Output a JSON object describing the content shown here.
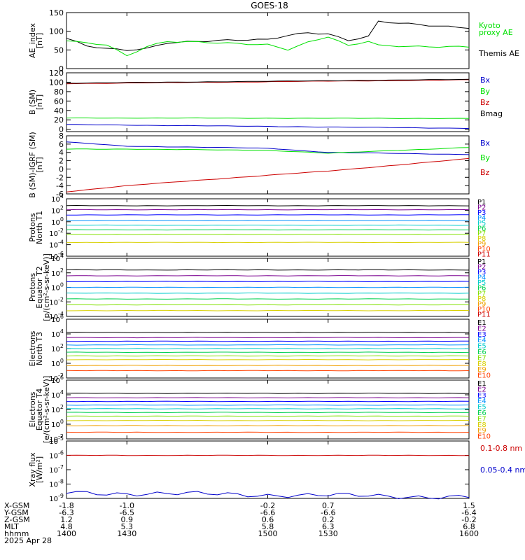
{
  "title": "GOES-18",
  "colors": {
    "black": "#000000",
    "green": "#00e000",
    "blue": "#0000cc",
    "red": "#cc0000",
    "P": [
      "#000000",
      "#7a0090",
      "#0000ff",
      "#0090ff",
      "#00cccc",
      "#00d050",
      "#80e000",
      "#d8d000",
      "#f0a000",
      "#ff4000",
      "#cc0000"
    ],
    "E": [
      "#000000",
      "#7a0090",
      "#0000ff",
      "#0090ff",
      "#00cccc",
      "#00d050",
      "#80e000",
      "#d8d000",
      "#f0a000",
      "#ff4000",
      "#aa0000"
    ]
  },
  "chart_data": [
    {
      "type": "line",
      "ylabel": "AE_index [nT]",
      "ylim": [
        0,
        150
      ],
      "yticks": [
        "0",
        "50",
        "100",
        "150"
      ],
      "x": [
        1400,
        1410,
        1420,
        1430,
        1440,
        1450,
        1500,
        1510,
        1520,
        1530,
        1540,
        1550,
        1555,
        1600
      ],
      "series": [
        {
          "name": "Themis AE",
          "color": "#000000",
          "values": [
            80,
            60,
            53,
            50,
            55,
            70,
            78,
            90,
            97,
            93,
            75,
            85,
            125,
            110
          ]
        },
        {
          "name": "Kyoto proxy AE",
          "color": "#00e000",
          "values": [
            75,
            68,
            65,
            35,
            60,
            72,
            65,
            52,
            70,
            85,
            60,
            73,
            62,
            58
          ]
        }
      ],
      "legend": [
        {
          "text": "Kyoto",
          "color": "#00e000"
        },
        {
          "text": "proxy AE",
          "color": "#00e000"
        },
        {
          "text": "Themis AE",
          "color": "#000000"
        }
      ]
    },
    {
      "type": "line",
      "ylabel": "B (SM) [nT]",
      "ylim": [
        -5,
        120
      ],
      "yticks": [
        "0",
        "20",
        "40",
        "60",
        "80",
        "100",
        "120"
      ],
      "x": [
        1400,
        1600
      ],
      "series": [
        {
          "name": "Bx",
          "color": "#0000cc",
          "values": [
            10,
            2
          ]
        },
        {
          "name": "By",
          "color": "#00e000",
          "values": [
            24,
            23
          ]
        },
        {
          "name": "Bz",
          "color": "#cc0000",
          "values": [
            97,
            105
          ]
        },
        {
          "name": "Bmag",
          "color": "#000000",
          "values": [
            98,
            106
          ]
        }
      ]
    },
    {
      "type": "line",
      "ylabel": "B (SM)-IGRF (SM) [nT]",
      "ylim": [
        -6,
        8
      ],
      "yticks": [
        "-6",
        "-4",
        "-2",
        "0",
        "2",
        "4",
        "6",
        "8"
      ],
      "x": [
        1400,
        1430,
        1500,
        1530,
        1600
      ],
      "series": [
        {
          "name": "Bx",
          "color": "#0000cc",
          "values": [
            6.5,
            5.5,
            5,
            4,
            3.5
          ]
        },
        {
          "name": "By",
          "color": "#00e000",
          "values": [
            4.8,
            4.8,
            4.5,
            3.8,
            5.2
          ]
        },
        {
          "name": "Bz",
          "color": "#cc0000",
          "values": [
            -5.5,
            -4,
            -1.5,
            -0.5,
            2.5
          ]
        }
      ]
    },
    {
      "type": "line",
      "ylabel": "Protons North T1",
      "ylim": [
        -6,
        4
      ],
      "yticks": [
        "10-6",
        "10-4",
        "10-2",
        "100",
        "102",
        "104"
      ],
      "x": [
        1400,
        1600
      ],
      "series": [
        {
          "name": "P1",
          "values": [
            2.8,
            2.8
          ]
        },
        {
          "name": "P2",
          "values": [
            2.1,
            2.1
          ]
        },
        {
          "name": "P3",
          "values": [
            1.2,
            1.2
          ]
        },
        {
          "name": "P4",
          "values": [
            0.2,
            0.2
          ]
        },
        {
          "name": "P5",
          "values": [
            -0.6,
            -0.6
          ]
        },
        {
          "name": "P6",
          "values": [
            -1.4,
            -1.4
          ]
        },
        {
          "name": "P7",
          "values": [
            -2.2,
            -2.2
          ]
        },
        {
          "name": "P8",
          "values": [
            -3.6,
            -3.6
          ]
        }
      ],
      "labels": [
        "P1",
        "P2",
        "P3",
        "P4",
        "P5",
        "P6",
        "P7",
        "P8",
        "P9",
        "P10",
        "P11"
      ]
    },
    {
      "type": "line",
      "ylabel": "Protons Equator T2 [p/(cm²-s-sr-keV)]",
      "ylim": [
        -4,
        4
      ],
      "yticks": [
        "10-4",
        "10-2",
        "100",
        "102",
        "104"
      ],
      "x": [
        1400,
        1600
      ],
      "series": [
        {
          "name": "P1",
          "values": [
            2.4,
            2.4
          ]
        },
        {
          "name": "P2",
          "values": [
            1.6,
            1.6
          ]
        },
        {
          "name": "P3",
          "values": [
            0.8,
            0.8
          ]
        },
        {
          "name": "P4",
          "values": [
            0.0,
            0.0
          ]
        },
        {
          "name": "P5",
          "values": [
            -0.8,
            -0.8
          ]
        },
        {
          "name": "P6",
          "values": [
            -1.6,
            -1.6
          ]
        },
        {
          "name": "P7",
          "values": [
            -2.4,
            -2.4
          ]
        },
        {
          "name": "P8",
          "values": [
            -3.2,
            -3.2
          ]
        }
      ],
      "labels": [
        "P1",
        "P2",
        "P3",
        "P4",
        "P5",
        "P6",
        "P7",
        "P8",
        "P9",
        "P10",
        "P11"
      ]
    },
    {
      "type": "line",
      "ylabel": "Electrons North T3",
      "ylim": [
        -2,
        6
      ],
      "yticks": [
        "10-2",
        "100",
        "102",
        "104",
        "106"
      ],
      "x": [
        1400,
        1600
      ],
      "series": [
        {
          "name": "E1",
          "values": [
            4.2,
            4.2
          ]
        },
        {
          "name": "E2",
          "values": [
            3.5,
            3.5
          ]
        },
        {
          "name": "E3",
          "values": [
            3.0,
            3.0
          ]
        },
        {
          "name": "E4",
          "values": [
            2.5,
            2.5
          ]
        },
        {
          "name": "E5",
          "values": [
            2.0,
            2.0
          ]
        },
        {
          "name": "E6",
          "values": [
            1.5,
            1.5
          ]
        },
        {
          "name": "E7",
          "values": [
            1.0,
            1.0
          ]
        },
        {
          "name": "E8",
          "values": [
            0.5,
            0.5
          ]
        },
        {
          "name": "E9",
          "values": [
            -0.3,
            -0.3
          ]
        },
        {
          "name": "E10",
          "values": [
            -1.0,
            -1.0
          ]
        }
      ],
      "labels": [
        "E1",
        "E2",
        "E3",
        "E4",
        "E5",
        "E6",
        "E7",
        "E8",
        "E9",
        "E10"
      ]
    },
    {
      "type": "line",
      "ylabel": "Electrons Equator T4 [e/(cm²-s-sr-keV)]",
      "ylim": [
        -2,
        6
      ],
      "yticks": [
        "10-2",
        "100",
        "102",
        "104",
        "106"
      ],
      "x": [
        1400,
        1600
      ],
      "series": [
        {
          "name": "E1",
          "values": [
            4.2,
            4.2
          ]
        },
        {
          "name": "E2",
          "values": [
            3.6,
            3.6
          ]
        },
        {
          "name": "E3",
          "values": [
            3.1,
            3.1
          ]
        },
        {
          "name": "E4",
          "values": [
            2.6,
            2.6
          ]
        },
        {
          "name": "E5",
          "values": [
            2.1,
            2.1
          ]
        },
        {
          "name": "E6",
          "values": [
            1.6,
            1.6
          ]
        },
        {
          "name": "E7",
          "values": [
            1.1,
            1.1
          ]
        },
        {
          "name": "E8",
          "values": [
            0.5,
            0.5
          ]
        },
        {
          "name": "E9",
          "values": [
            -0.2,
            -0.2
          ]
        },
        {
          "name": "E10",
          "values": [
            -1.1,
            -1.1
          ]
        }
      ],
      "labels": [
        "E1",
        "E2",
        "E3",
        "E4",
        "E5",
        "E6",
        "E7",
        "E8",
        "E9",
        "E10"
      ]
    },
    {
      "type": "line",
      "ylabel": "Xray flux [W/m²]",
      "ylim": [
        -9,
        -5
      ],
      "yticks": [
        "10-9",
        "10-8",
        "10-7",
        "10-6",
        "10-5"
      ],
      "x": [
        1400,
        1600
      ],
      "series": [
        {
          "name": "0.1-0.8 nm",
          "color": "#cc0000",
          "values": [
            -6.0,
            -6.0
          ]
        },
        {
          "name": "0.05-0.4 nm",
          "color": "#0000cc",
          "values": [
            -8.6,
            -8.9
          ]
        }
      ]
    }
  ],
  "x_axis": {
    "ticks": [
      {
        "xgsm": "-1.8",
        "ygsm": "-6.3",
        "zgsm": "1.2",
        "mlt": "4.8",
        "hhmm": "1400"
      },
      {
        "xgsm": "-1.0",
        "ygsm": "-6.5",
        "zgsm": "0.9",
        "mlt": "5.3",
        "hhmm": "1430"
      },
      {
        "xgsm": "-0.2",
        "ygsm": "-6.6",
        "zgsm": "0.6",
        "mlt": "5.8",
        "hhmm": "1500"
      },
      {
        "xgsm": "0.7",
        "ygsm": "-6.6",
        "zgsm": "0.2",
        "mlt": "6.3",
        "hhmm": "1530"
      },
      {
        "xgsm": "1.5",
        "ygsm": "-6.4",
        "zgsm": "-0.2",
        "mlt": "6.8",
        "hhmm": "1600"
      }
    ],
    "row_labels": [
      "X-GSM",
      "Y-GSM",
      "Z-GSM",
      "MLT",
      "hhmm"
    ],
    "date": "2025 Apr 28"
  },
  "labels_text": {
    "ae_ylabel": "AE_index",
    "ae_unit": "[nT]",
    "b_ylabel": "B (SM)",
    "b_unit": "[nT]",
    "bi_ylabel": "B (SM)-IGRF (SM)",
    "bi_unit": "[nT]",
    "p1_l1": "Protons",
    "p1_l2": "North T1",
    "p2_l1": "Protons",
    "p2_l2": "Equator T2",
    "p2_l3": "[p/(cm²-s-sr-keV)]",
    "e1_l1": "Electrons",
    "e1_l2": "North T3",
    "e2_l1": "Electrons",
    "e2_l2": "Equator T4",
    "e2_l3": "[e/(cm²-s-sr-keV)]",
    "x_l1": "Xray flux",
    "x_l2": "[W/m²]"
  }
}
